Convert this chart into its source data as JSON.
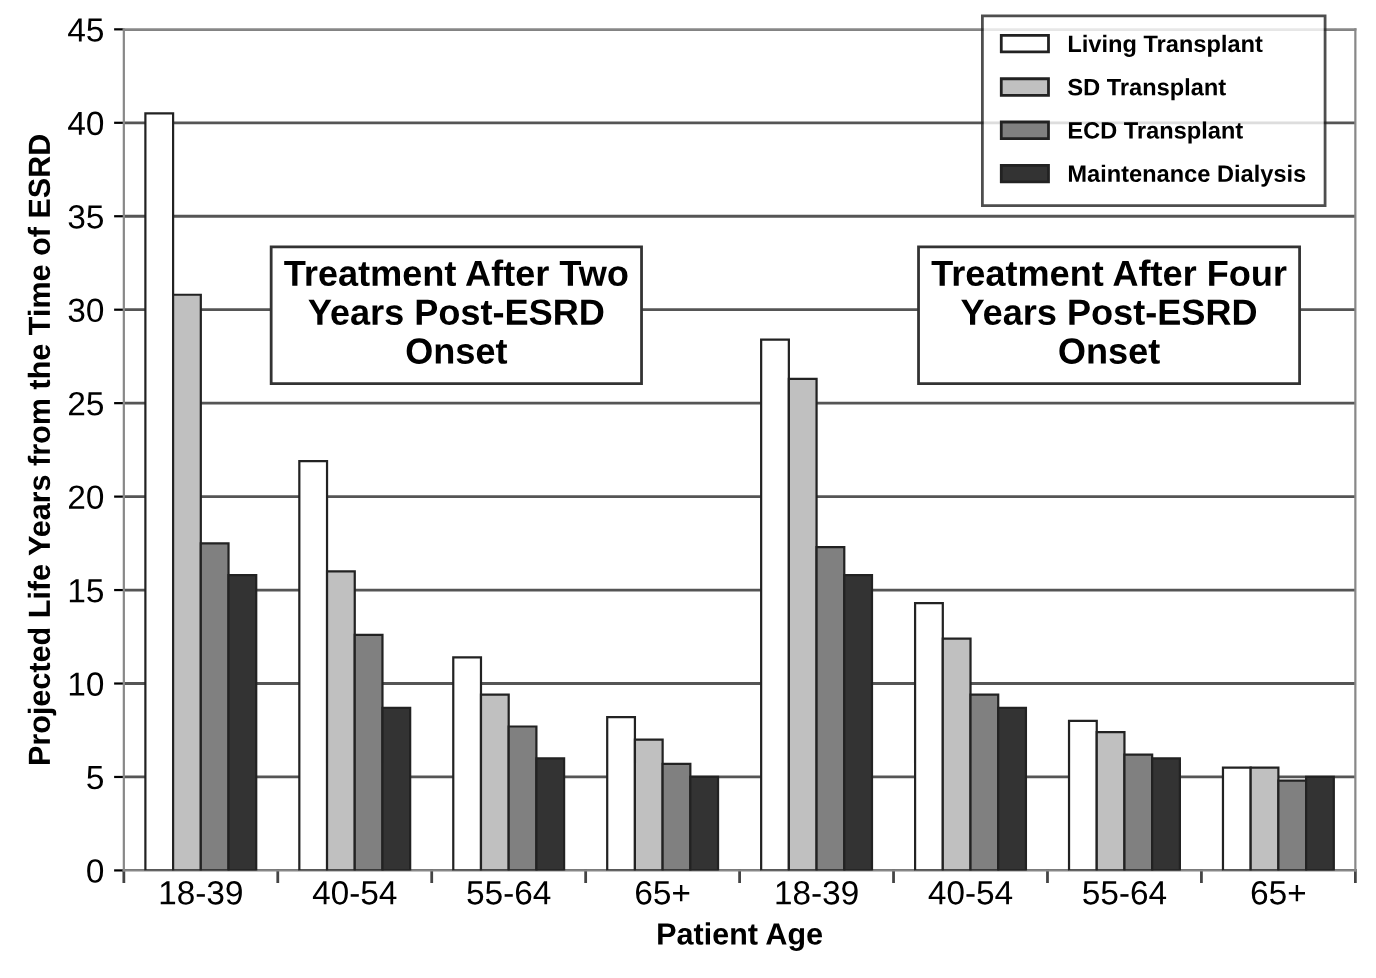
{
  "chart_data": {
    "type": "bar",
    "xlabel": "Patient Age",
    "ylabel": "Projected Life Years from the Time of ESRD",
    "categories": [
      "18-39",
      "40-54",
      "55-64",
      "65+",
      "18-39",
      "40-54",
      "55-64",
      "65+"
    ],
    "series": [
      {
        "name": "Living Transplant",
        "color": "#ffffff",
        "values": [
          40.5,
          21.9,
          11.4,
          8.2,
          28.4,
          14.3,
          8.0,
          5.5
        ]
      },
      {
        "name": "SD Transplant",
        "color": "#c0c0c0",
        "values": [
          30.8,
          16.0,
          9.4,
          7.0,
          26.3,
          12.4,
          7.4,
          5.5
        ]
      },
      {
        "name": "ECD Transplant",
        "color": "#808080",
        "values": [
          17.5,
          12.6,
          7.7,
          5.7,
          17.3,
          9.4,
          6.2,
          4.8
        ]
      },
      {
        "name": "Maintenance Dialysis",
        "color": "#333333",
        "values": [
          15.8,
          8.7,
          6.0,
          5.0,
          15.8,
          8.7,
          6.0,
          5.0
        ]
      }
    ],
    "annotations": [
      "Treatment After Two\nYears Post-ESRD\nOnset",
      "Treatment After Four\nYears Post-ESRD\nOnset"
    ],
    "ylim": [
      0,
      45
    ],
    "yticks": [
      0,
      5,
      10,
      15,
      20,
      25,
      30,
      35,
      40,
      45
    ],
    "grid": "y",
    "legend": "top right"
  }
}
